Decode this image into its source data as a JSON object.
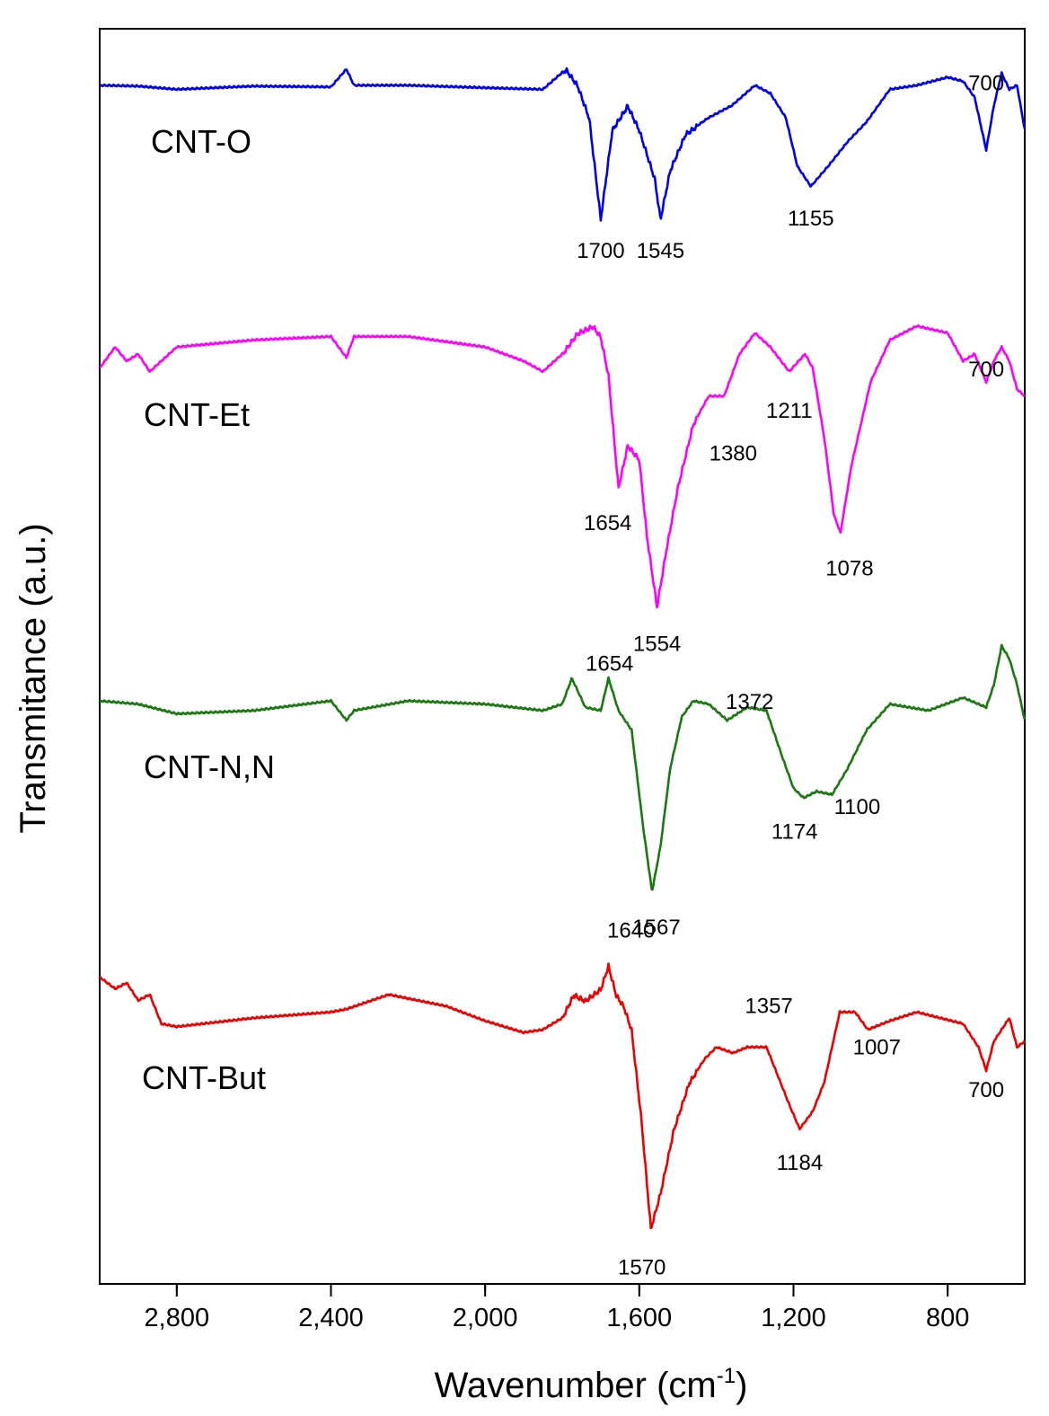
{
  "chart_data": {
    "type": "line",
    "title": "",
    "xlabel": "Wavenumber (cm",
    "xlabel_sup": "-1",
    "xlabel_close": ")",
    "ylabel": "Transmitance (a.u.)",
    "x_reversed": true,
    "xlim": [
      3000,
      600
    ],
    "xticks": [
      2800,
      2400,
      2000,
      1600,
      1200,
      800
    ],
    "xtick_labels": [
      "2,800",
      "2,400",
      "2,000",
      "1,600",
      "1,200",
      "800"
    ],
    "y_ticks_shown": false,
    "series": [
      {
        "name": "CNT-O",
        "color": "#0000ee",
        "points": [
          [
            3000,
            0.05
          ],
          [
            2900,
            0.06
          ],
          [
            2800,
            0.1
          ],
          [
            2600,
            0.06
          ],
          [
            2400,
            0.07
          ],
          [
            2360,
            -0.15
          ],
          [
            2340,
            0.05
          ],
          [
            2200,
            0.05
          ],
          [
            2000,
            0.08
          ],
          [
            1850,
            0.1
          ],
          [
            1790,
            -0.15
          ],
          [
            1760,
            0.05
          ],
          [
            1730,
            0.45
          ],
          [
            1700,
            1.7
          ],
          [
            1670,
            0.6
          ],
          [
            1630,
            0.3
          ],
          [
            1600,
            0.6
          ],
          [
            1560,
            1.2
          ],
          [
            1545,
            1.7
          ],
          [
            1520,
            1.1
          ],
          [
            1480,
            0.65
          ],
          [
            1420,
            0.45
          ],
          [
            1360,
            0.3
          ],
          [
            1300,
            0.05
          ],
          [
            1260,
            0.15
          ],
          [
            1220,
            0.45
          ],
          [
            1190,
            1.05
          ],
          [
            1155,
            1.3
          ],
          [
            1110,
            1.05
          ],
          [
            1060,
            0.75
          ],
          [
            1010,
            0.5
          ],
          [
            950,
            0.1
          ],
          [
            880,
            0.05
          ],
          [
            800,
            -0.05
          ],
          [
            760,
            0.0
          ],
          [
            730,
            0.2
          ],
          [
            700,
            0.85
          ],
          [
            680,
            0.3
          ],
          [
            660,
            -0.1
          ],
          [
            640,
            0.1
          ],
          [
            620,
            0.05
          ],
          [
            600,
            0.6
          ]
        ],
        "peaks": [
          1700,
          1545,
          1155,
          700
        ]
      },
      {
        "name": "CNT-Et",
        "color": "#ff00ff",
        "points": [
          [
            3000,
            0.4
          ],
          [
            2960,
            0.1
          ],
          [
            2930,
            0.3
          ],
          [
            2900,
            0.2
          ],
          [
            2870,
            0.45
          ],
          [
            2800,
            0.1
          ],
          [
            2600,
            0.0
          ],
          [
            2400,
            -0.05
          ],
          [
            2360,
            0.25
          ],
          [
            2340,
            -0.05
          ],
          [
            2200,
            -0.05
          ],
          [
            2000,
            0.1
          ],
          [
            1900,
            0.3
          ],
          [
            1850,
            0.45
          ],
          [
            1800,
            0.2
          ],
          [
            1760,
            -0.1
          ],
          [
            1720,
            -0.2
          ],
          [
            1700,
            -0.05
          ],
          [
            1680,
            0.5
          ],
          [
            1654,
            2.1
          ],
          [
            1630,
            1.5
          ],
          [
            1600,
            1.7
          ],
          [
            1580,
            2.8
          ],
          [
            1554,
            3.8
          ],
          [
            1530,
            3.0
          ],
          [
            1500,
            2.1
          ],
          [
            1460,
            1.2
          ],
          [
            1420,
            0.8
          ],
          [
            1380,
            0.8
          ],
          [
            1340,
            0.2
          ],
          [
            1300,
            -0.1
          ],
          [
            1260,
            0.1
          ],
          [
            1211,
            0.45
          ],
          [
            1170,
            0.2
          ],
          [
            1150,
            0.4
          ],
          [
            1120,
            1.4
          ],
          [
            1095,
            2.5
          ],
          [
            1078,
            2.75
          ],
          [
            1050,
            1.8
          ],
          [
            1000,
            0.6
          ],
          [
            950,
            0.0
          ],
          [
            880,
            -0.2
          ],
          [
            800,
            -0.1
          ],
          [
            760,
            0.3
          ],
          [
            730,
            0.2
          ],
          [
            700,
            0.6
          ],
          [
            680,
            0.3
          ],
          [
            660,
            0.1
          ],
          [
            640,
            0.3
          ],
          [
            620,
            0.7
          ],
          [
            600,
            0.8
          ]
        ],
        "peaks": [
          1654,
          1554,
          1380,
          1211,
          1078,
          700
        ]
      },
      {
        "name": "CNT-N,N",
        "color": "#1a7a10",
        "points": [
          [
            3000,
            0.05
          ],
          [
            2900,
            0.1
          ],
          [
            2800,
            0.25
          ],
          [
            2600,
            0.2
          ],
          [
            2400,
            0.05
          ],
          [
            2360,
            0.35
          ],
          [
            2340,
            0.2
          ],
          [
            2200,
            0.05
          ],
          [
            2000,
            0.1
          ],
          [
            1850,
            0.2
          ],
          [
            1800,
            0.1
          ],
          [
            1775,
            -0.3
          ],
          [
            1740,
            0.15
          ],
          [
            1700,
            0.2
          ],
          [
            1680,
            -0.3
          ],
          [
            1654,
            0.2
          ],
          [
            1620,
            0.5
          ],
          [
            1590,
            2.0
          ],
          [
            1567,
            3.0
          ],
          [
            1545,
            2.3
          ],
          [
            1520,
            1.1
          ],
          [
            1490,
            0.3
          ],
          [
            1460,
            0.05
          ],
          [
            1420,
            0.1
          ],
          [
            1372,
            0.35
          ],
          [
            1320,
            0.15
          ],
          [
            1270,
            0.2
          ],
          [
            1230,
            0.9
          ],
          [
            1200,
            1.4
          ],
          [
            1174,
            1.55
          ],
          [
            1140,
            1.45
          ],
          [
            1100,
            1.5
          ],
          [
            1060,
            1.1
          ],
          [
            1010,
            0.5
          ],
          [
            950,
            0.1
          ],
          [
            850,
            0.2
          ],
          [
            760,
            0.0
          ],
          [
            700,
            0.15
          ],
          [
            680,
            -0.2
          ],
          [
            660,
            -0.8
          ],
          [
            640,
            -0.6
          ],
          [
            620,
            -0.2
          ],
          [
            600,
            0.35
          ]
        ],
        "peaks": [
          1654,
          1567,
          1372,
          1174,
          1100
        ]
      },
      {
        "name": "CNT-But",
        "color": "#ee0000",
        "points": [
          [
            3000,
            -0.6
          ],
          [
            2960,
            -0.4
          ],
          [
            2930,
            -0.5
          ],
          [
            2900,
            -0.2
          ],
          [
            2870,
            -0.3
          ],
          [
            2840,
            0.2
          ],
          [
            2800,
            0.25
          ],
          [
            2600,
            0.1
          ],
          [
            2400,
            0.0
          ],
          [
            2360,
            -0.05
          ],
          [
            2250,
            -0.3
          ],
          [
            2100,
            -0.1
          ],
          [
            2000,
            0.15
          ],
          [
            1900,
            0.35
          ],
          [
            1850,
            0.3
          ],
          [
            1800,
            0.1
          ],
          [
            1770,
            -0.3
          ],
          [
            1740,
            -0.2
          ],
          [
            1700,
            -0.4
          ],
          [
            1680,
            -0.8
          ],
          [
            1660,
            -0.3
          ],
          [
            1640,
            -0.1
          ],
          [
            1620,
            0.3
          ],
          [
            1595,
            1.8
          ],
          [
            1570,
            3.7
          ],
          [
            1545,
            3.1
          ],
          [
            1510,
            2.0
          ],
          [
            1470,
            1.2
          ],
          [
            1430,
            0.8
          ],
          [
            1400,
            0.6
          ],
          [
            1357,
            0.7
          ],
          [
            1320,
            0.6
          ],
          [
            1270,
            0.6
          ],
          [
            1240,
            1.1
          ],
          [
            1210,
            1.6
          ],
          [
            1184,
            2.0
          ],
          [
            1150,
            1.7
          ],
          [
            1120,
            1.2
          ],
          [
            1080,
            0.0
          ],
          [
            1040,
            0.0
          ],
          [
            1007,
            0.3
          ],
          [
            950,
            0.15
          ],
          [
            880,
            0.0
          ],
          [
            820,
            0.1
          ],
          [
            760,
            0.2
          ],
          [
            720,
            0.6
          ],
          [
            700,
            1.0
          ],
          [
            680,
            0.5
          ],
          [
            660,
            0.3
          ],
          [
            640,
            0.1
          ],
          [
            620,
            0.6
          ],
          [
            600,
            0.5
          ]
        ],
        "peaks": [
          1640,
          1570,
          1357,
          1184,
          1007,
          700
        ]
      }
    ],
    "peak_labels": [
      {
        "series": "CNT-O",
        "text": "1700"
      },
      {
        "series": "CNT-O",
        "text": "1545"
      },
      {
        "series": "CNT-O",
        "text": "1155"
      },
      {
        "series": "CNT-O",
        "text": "700"
      },
      {
        "series": "CNT-Et",
        "text": "1654"
      },
      {
        "series": "CNT-Et",
        "text": "1554"
      },
      {
        "series": "CNT-Et",
        "text": "1380"
      },
      {
        "series": "CNT-Et",
        "text": "1211"
      },
      {
        "series": "CNT-Et",
        "text": "1078"
      },
      {
        "series": "CNT-Et",
        "text": "700"
      },
      {
        "series": "CNT-N,N",
        "text": "1654"
      },
      {
        "series": "CNT-N,N",
        "text": "1567"
      },
      {
        "series": "CNT-N,N",
        "text": "1372"
      },
      {
        "series": "CNT-N,N",
        "text": "1174"
      },
      {
        "series": "CNT-N,N",
        "text": "1100"
      },
      {
        "series": "CNT-But",
        "text": "1640"
      },
      {
        "series": "CNT-But",
        "text": "1570"
      },
      {
        "series": "CNT-But",
        "text": "1357"
      },
      {
        "series": "CNT-But",
        "text": "1184"
      },
      {
        "series": "CNT-But",
        "text": "1007"
      },
      {
        "series": "CNT-But",
        "text": "700"
      }
    ]
  }
}
